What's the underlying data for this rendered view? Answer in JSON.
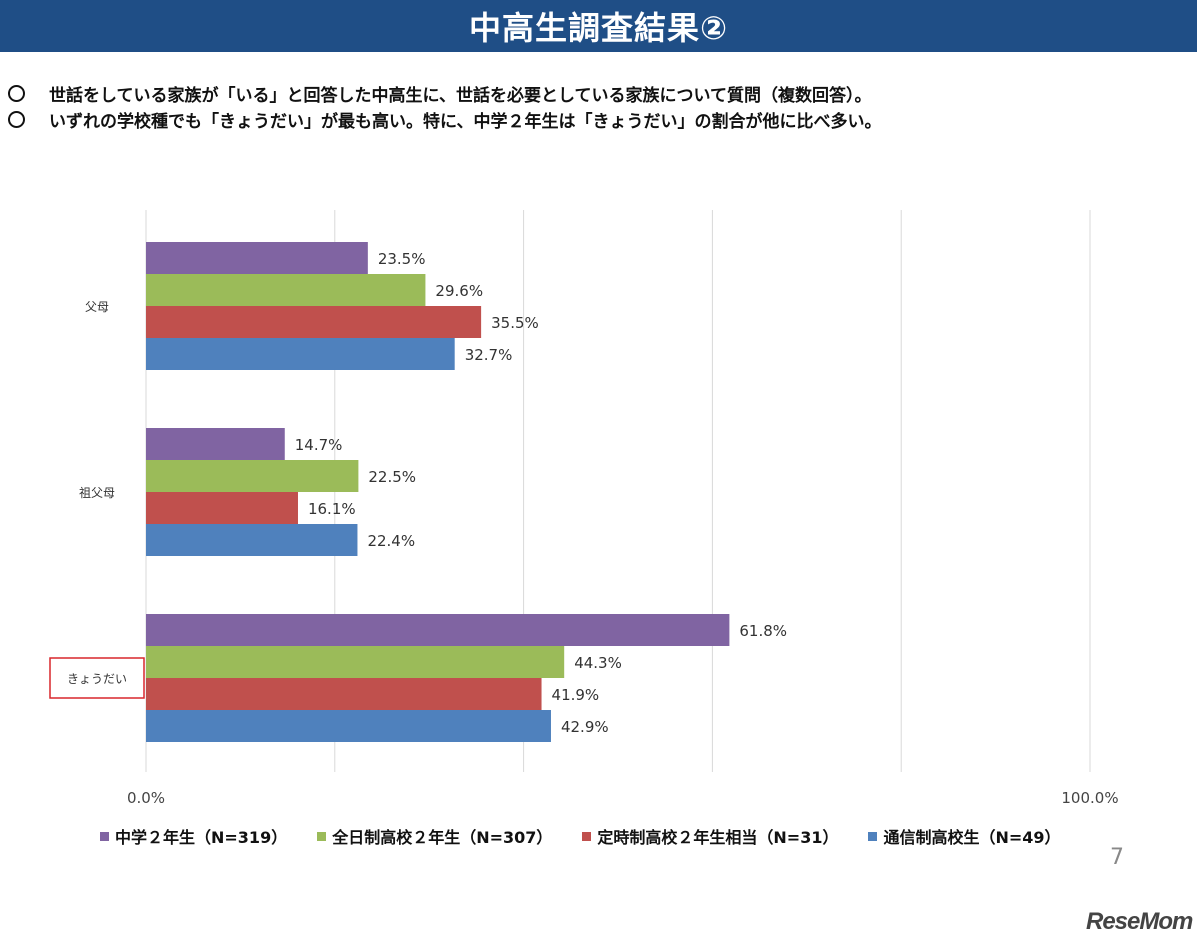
{
  "header": {
    "title": "中高生調査結果②"
  },
  "bullets": [
    "世話をしている家族が「いる」と回答した中高生に、世話を必要としている家族について質問（複数回答）。",
    "いずれの学校種でも「きょうだい」が最も高い。特に、中学２年生は「きょうだい」の割合が他に比べ多い。"
  ],
  "page_number": "7",
  "watermark": "ReseMom",
  "chart_data": {
    "type": "bar",
    "orientation": "horizontal",
    "categories": [
      "父母",
      "祖父母",
      "きょうだい"
    ],
    "highlighted_category": "きょうだい",
    "series": [
      {
        "name": "中学２年生（N=319）",
        "color": "#8064a2",
        "values": [
          23.5,
          14.7,
          61.8
        ]
      },
      {
        "name": "全日制高校２年生（N=307）",
        "color": "#9bbb59",
        "values": [
          29.6,
          22.5,
          44.3
        ]
      },
      {
        "name": "定時制高校２年生相当（N=31）",
        "color": "#c0504d",
        "values": [
          35.5,
          16.1,
          41.9
        ]
      },
      {
        "name": "通信制高校生（N=49）",
        "color": "#4f81bd",
        "values": [
          32.7,
          22.4,
          42.9
        ]
      }
    ],
    "value_labels": [
      [
        "23.5%",
        "14.7%",
        "61.8%"
      ],
      [
        "29.6%",
        "22.5%",
        "44.3%"
      ],
      [
        "35.5%",
        "16.1%",
        "41.9%"
      ],
      [
        "32.7%",
        "22.4%",
        "42.9%"
      ]
    ],
    "xlim": [
      0,
      100
    ],
    "x_tick_labels": [
      "0.0%",
      "100.0%"
    ],
    "gridlines": [
      0,
      20,
      40,
      60,
      80,
      100
    ],
    "highlight_color": "#d9262c",
    "legend_position": "bottom",
    "grid": true
  }
}
